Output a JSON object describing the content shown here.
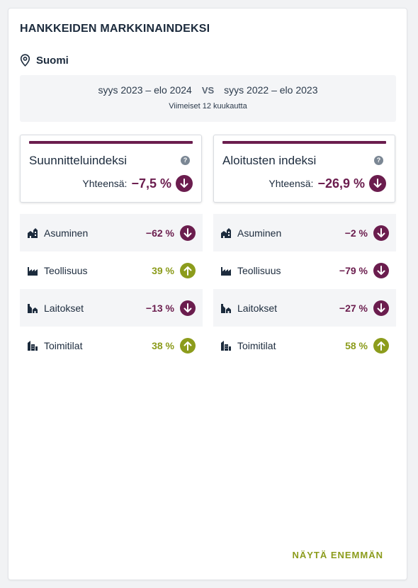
{
  "title": "HANKKEIDEN MARKKINAINDEKSI",
  "location": {
    "icon": "location-pin-icon",
    "label": "Suomi"
  },
  "period": {
    "current": "syys 2023 – elo 2024",
    "vs": "VS",
    "previous": "syys 2022 – elo 2023",
    "subtitle": "Viimeiset 12 kuukautta"
  },
  "indices": [
    {
      "name": "Suunnitteluindeksi",
      "total_label": "Yhteensä:",
      "total_value": "−7,5 %",
      "direction": "down",
      "rows": [
        {
          "label": "Asuminen",
          "value": "−62 %",
          "direction": "down",
          "icon": "housing-icon"
        },
        {
          "label": "Teollisuus",
          "value": "39 %",
          "direction": "up",
          "icon": "factory-icon"
        },
        {
          "label": "Laitokset",
          "value": "−13 %",
          "direction": "down",
          "icon": "institution-icon"
        },
        {
          "label": "Toimitilat",
          "value": "38 %",
          "direction": "up",
          "icon": "office-icon"
        }
      ]
    },
    {
      "name": "Aloitusten indeksi",
      "total_label": "Yhteensä:",
      "total_value": "−26,9 %",
      "direction": "down",
      "rows": [
        {
          "label": "Asuminen",
          "value": "−2 %",
          "direction": "down",
          "icon": "housing-icon"
        },
        {
          "label": "Teollisuus",
          "value": "−79 %",
          "direction": "down",
          "icon": "factory-icon"
        },
        {
          "label": "Laitokset",
          "value": "−27 %",
          "direction": "down",
          "icon": "institution-icon"
        },
        {
          "label": "Toimitilat",
          "value": "58 %",
          "direction": "up",
          "icon": "office-icon"
        }
      ]
    }
  ],
  "more_label": "NÄYTÄ ENEMMÄN",
  "colors": {
    "negative": "#6b1d4e",
    "positive": "#8c9c1c",
    "text": "#1c2b3d"
  }
}
